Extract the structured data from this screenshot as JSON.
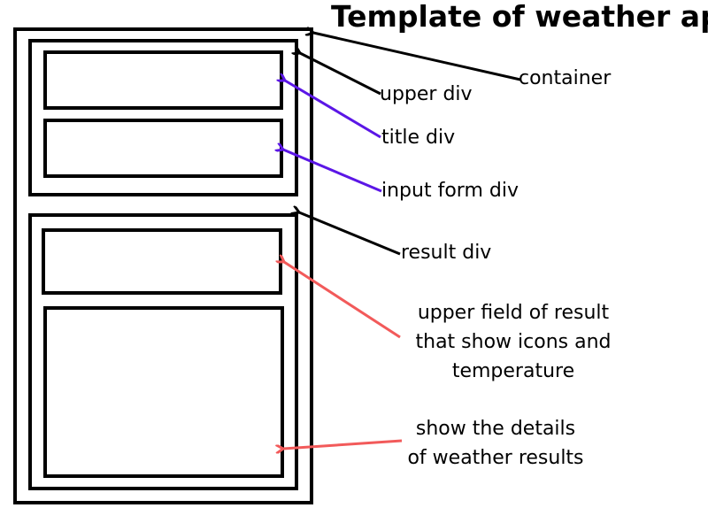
{
  "title": "Template of weather app",
  "colors": {
    "black_arrow": "#000000",
    "purple_arrow": "#5b16e6",
    "red_arrow": "#f25a5a"
  },
  "labels": {
    "container": "container",
    "upper_div": "upper div",
    "title_div": "title div",
    "input_form_div": "input form div",
    "result_div": "result div",
    "upper_field": [
      "upper field of result",
      "that show icons and",
      "temperature"
    ],
    "details": [
      "show the details",
      "of weather results"
    ]
  }
}
